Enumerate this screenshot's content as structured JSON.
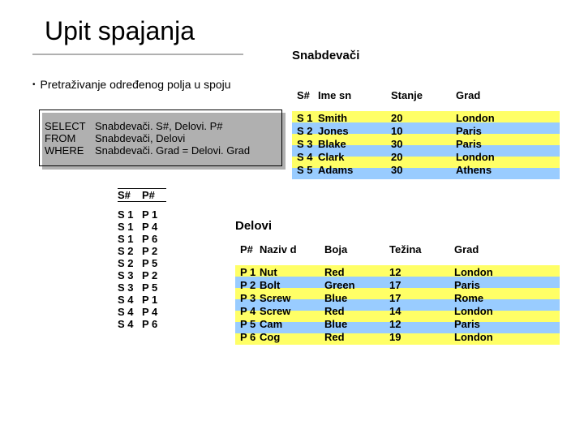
{
  "title": "Upit spajanja",
  "topLabel": "Snabdevači",
  "bullet": "Pretraživanje određenog polja u spoju",
  "sql": {
    "l1a": "SELECT",
    "l1b": "Snabdevači. S#, Delovi. P#",
    "l2a": "FROM",
    "l2b": "Snabdevači, Delovi",
    "l3a": "WHERE",
    "l3b": "Snabdevači. Grad = Delovi. Grad"
  },
  "result": {
    "h0": "S#",
    "h1": "P#",
    "rows": [
      [
        "S 1",
        "P 1"
      ],
      [
        "S 1",
        "P 4"
      ],
      [
        "S 1",
        "P 6"
      ],
      [
        "S 2",
        "P 2"
      ],
      [
        "S 2",
        "P 5"
      ],
      [
        "S 3",
        "P 2"
      ],
      [
        "S 3",
        "P 5"
      ],
      [
        "S 4",
        "P 1"
      ],
      [
        "S 4",
        "P 4"
      ],
      [
        "S 4",
        "P 6"
      ]
    ]
  },
  "snab": {
    "h0": "S#",
    "h1": "Ime sn",
    "h2": "Stanje",
    "h3": "Grad",
    "rows": [
      [
        "S 1",
        "Smith",
        "20",
        "London"
      ],
      [
        "S 2",
        "Jones",
        "10",
        "Paris"
      ],
      [
        "S 3",
        "Blake",
        "30",
        " Paris"
      ],
      [
        "S 4",
        "Clark",
        "20",
        "London"
      ],
      [
        "S 5",
        "Adams",
        "30",
        "Athens"
      ]
    ]
  },
  "deloviLabel": "Delovi",
  "delovi": {
    "h0": "P#",
    "h1": "Naziv d",
    "h2": "Boja",
    "h3": "Težina",
    "h4": "Grad",
    "rows": [
      [
        "P 1",
        "Nut",
        "Red",
        "12",
        "London"
      ],
      [
        "P 2",
        "Bolt",
        "Green",
        "17",
        "Paris"
      ],
      [
        "P 3",
        "Screw",
        "Blue",
        "17",
        "Rome"
      ],
      [
        "P 4",
        "Screw",
        "Red",
        "14",
        "London"
      ],
      [
        "P 5",
        "Cam",
        "Blue",
        "12",
        " Paris"
      ],
      [
        "P 6",
        "Cog",
        "Red",
        "19",
        "London"
      ]
    ]
  },
  "colors": {
    "yellow": "#ffff66",
    "blue": "#99ccff"
  }
}
